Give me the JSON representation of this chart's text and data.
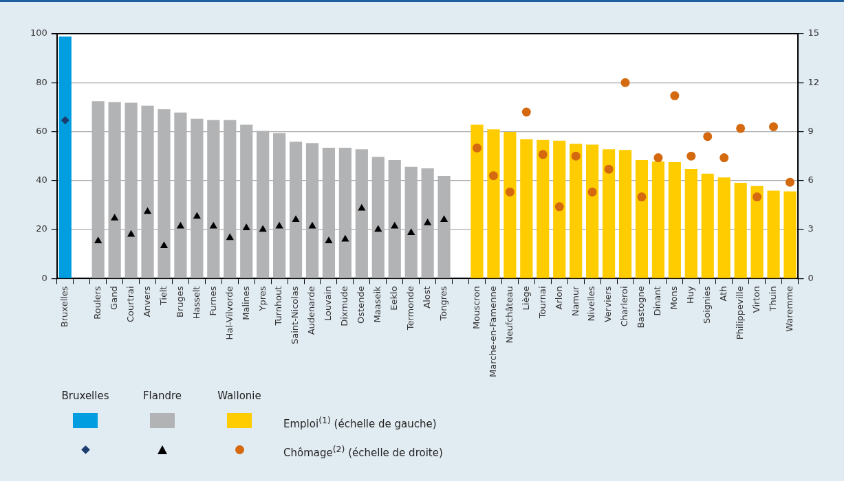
{
  "chart_data": {
    "type": "bar",
    "categories": [
      "Bruxelles",
      null,
      "Roulers",
      "Gand",
      "Courtrai",
      "Anvers",
      "Tielt",
      "Bruges",
      "Hasselt",
      "Furnes",
      "Hal-Vilvorde",
      "Malines",
      "Ypres",
      "Turnhout",
      "Saint-Nicolas",
      "Audenarde",
      "Louvain",
      "Dixmude",
      "Ostende",
      "Maaseik",
      "Eeklo",
      "Termonde",
      "Alost",
      "Tongres",
      null,
      "Mouscron",
      "Marche-en-Famenne",
      "Neufchâteau",
      "Liège",
      "Tournai",
      "Arlon",
      "Namur",
      "Nivelles",
      "Verviers",
      "Charleroi",
      "Bastogne",
      "Dinant",
      "Mons",
      "Huy",
      "Soignies",
      "Ath",
      "Philippeville",
      "Virton",
      "Thuin",
      "Waremme"
    ],
    "series": [
      {
        "color": "#009ee0",
        "values": [
          98.8,
          null,
          null,
          null,
          null,
          null,
          null,
          null,
          null,
          null,
          null,
          null,
          null,
          null,
          null,
          null,
          null,
          null,
          null,
          null,
          null,
          null,
          null,
          null,
          null,
          null,
          null,
          null,
          null,
          null,
          null,
          null,
          null,
          null,
          null,
          null,
          null,
          null,
          null,
          null,
          null,
          null,
          null,
          null,
          null
        ]
      },
      {
        "color": "#b2b3b5",
        "values": [
          null,
          null,
          72.4,
          72.1,
          71.8,
          70.6,
          69.1,
          67.8,
          65.3,
          64.7,
          64.7,
          62.8,
          60.3,
          59.4,
          55.9,
          55.3,
          53.4,
          53.4,
          52.8,
          49.7,
          48.4,
          45.6,
          45.0,
          41.9,
          null,
          null,
          null,
          null,
          null,
          null,
          null,
          null,
          null,
          null,
          null,
          null,
          null,
          null,
          null,
          null,
          null,
          null,
          null,
          null,
          null
        ]
      },
      {
        "color": "#ffcc00",
        "values": [
          null,
          null,
          null,
          null,
          null,
          null,
          null,
          null,
          null,
          null,
          null,
          null,
          null,
          null,
          null,
          null,
          null,
          null,
          null,
          null,
          null,
          null,
          null,
          null,
          null,
          62.8,
          60.9,
          59.9,
          56.9,
          56.6,
          56.3,
          55.0,
          54.7,
          52.8,
          52.5,
          48.4,
          47.8,
          47.5,
          44.7,
          42.8,
          41.3,
          39.1,
          37.8,
          35.9,
          35.6
        ]
      },
      {
        "type": "scatter",
        "axis": "y2",
        "marker": "diamond",
        "color": "#1a3d6e",
        "values": [
          9.7,
          null,
          null,
          null,
          null,
          null,
          null,
          null,
          null,
          null,
          null,
          null,
          null,
          null,
          null,
          null,
          null,
          null,
          null,
          null,
          null,
          null,
          null,
          null,
          null,
          null,
          null,
          null,
          null,
          null,
          null,
          null,
          null,
          null,
          null,
          null,
          null,
          null,
          null,
          null,
          null,
          null,
          null,
          null,
          null
        ]
      },
      {
        "type": "scatter",
        "axis": "y2",
        "marker": "triangle",
        "color": "#000000",
        "values": [
          null,
          null,
          2.3,
          3.7,
          2.7,
          4.1,
          2.0,
          3.2,
          3.8,
          3.2,
          2.5,
          3.1,
          3.0,
          3.2,
          3.6,
          3.2,
          2.3,
          2.4,
          4.3,
          3.0,
          3.2,
          2.8,
          3.4,
          3.6,
          null,
          null,
          null,
          null,
          null,
          null,
          null,
          null,
          null,
          null,
          null,
          null,
          null,
          null,
          null,
          null,
          null,
          null,
          null,
          null,
          null
        ]
      },
      {
        "type": "scatter",
        "axis": "y2",
        "marker": "circle",
        "color": "#d4690f",
        "values": [
          null,
          null,
          null,
          null,
          null,
          null,
          null,
          null,
          null,
          null,
          null,
          null,
          null,
          null,
          null,
          null,
          null,
          null,
          null,
          null,
          null,
          null,
          null,
          null,
          null,
          8.0,
          6.3,
          5.3,
          10.2,
          7.6,
          4.4,
          7.5,
          5.3,
          6.7,
          12.0,
          5.0,
          7.4,
          11.2,
          7.5,
          8.7,
          7.4,
          9.2,
          5.0,
          9.3,
          5.9
        ]
      }
    ],
    "ylim": [
      0,
      100
    ],
    "yticks": [
      0,
      20,
      40,
      60,
      80,
      100
    ],
    "y2lim": [
      0,
      15
    ],
    "y2ticks": [
      0,
      3,
      6,
      9,
      12,
      15
    ],
    "grid": "y",
    "annotations": [
      "Bruxelles",
      "Flandre",
      "Wallonie",
      "Emploi$^{(1)}$ (échelle de gauche)",
      "Chômage$^{(2)}$ (échelle de droite)"
    ]
  }
}
